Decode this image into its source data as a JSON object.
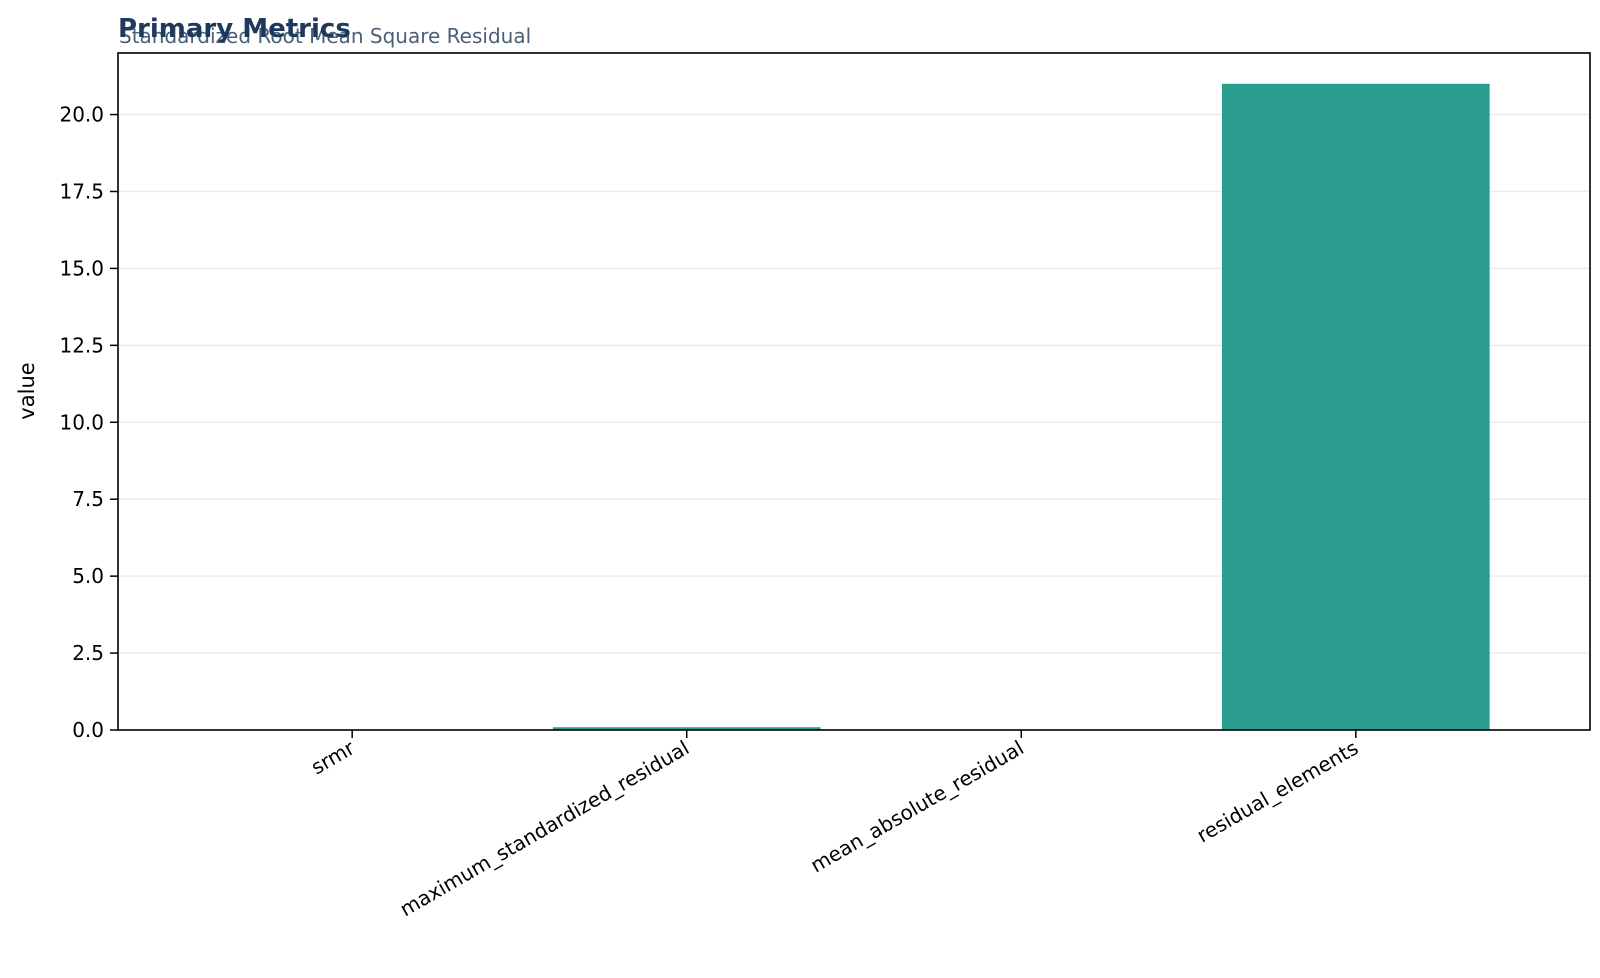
{
  "chart_data": {
    "type": "bar",
    "title": "Primary Metrics",
    "subtitle": "Standardized Root Mean Square Residual",
    "xlabel": "",
    "ylabel": "value",
    "categories": [
      "srmr",
      "maximum_standardized_residual",
      "mean_absolute_residual",
      "residual_elements"
    ],
    "values": [
      0.006,
      0.09,
      0.01,
      21
    ],
    "ylim": [
      0,
      22
    ],
    "yticks": [
      "0.0",
      "2.5",
      "5.0",
      "7.5",
      "10.0",
      "12.5",
      "15.0",
      "17.5",
      "20.0"
    ],
    "grid": "horizontal",
    "legend": "none"
  },
  "colors": {
    "bar": "#2a9d8f",
    "title": "#1d3a5c",
    "subtitle": "#4a6078",
    "grid": "#ebebeb",
    "frame": "#000000"
  }
}
